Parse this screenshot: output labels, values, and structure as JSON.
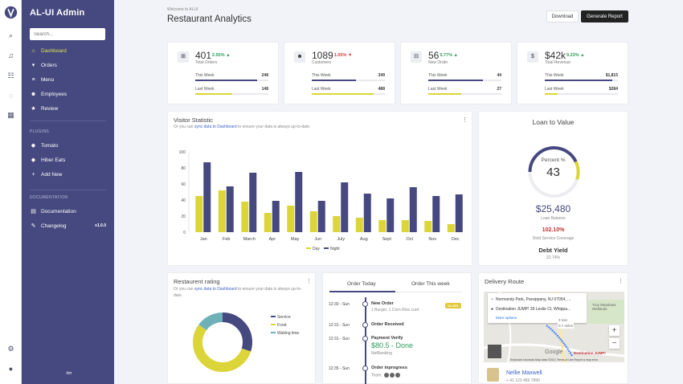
{
  "app": {
    "title": "AL-UI Admin",
    "search_placeholder": "Search...",
    "version": "v1.0.0"
  },
  "rail": {
    "icons": [
      "logo-icon",
      "search-icon",
      "bell-icon",
      "sliders-icon",
      "chat-icon",
      "calendar-icon",
      "gear-icon",
      "user-icon"
    ]
  },
  "sidebar": {
    "main_items": [
      {
        "label": "Dashboard",
        "icon": "home-icon"
      },
      {
        "label": "Orders",
        "icon": "cart-icon"
      },
      {
        "label": "Menu",
        "icon": "menu-icon"
      },
      {
        "label": "Employees",
        "icon": "users-icon"
      },
      {
        "label": "Review",
        "icon": "star-icon"
      }
    ],
    "plugins_heading": "PLUGINS",
    "plugin_items": [
      {
        "label": "Tomato",
        "icon": "tag-icon"
      },
      {
        "label": "Hiber Eats",
        "icon": "tag-icon"
      },
      {
        "label": "Add New",
        "icon": "plus-icon"
      }
    ],
    "docs_heading": "DOCUMENTATION",
    "doc_items": [
      {
        "label": "Documentation",
        "icon": "file-icon"
      },
      {
        "label": "Changelog",
        "icon": "pencil-icon"
      }
    ]
  },
  "header": {
    "welcome": "Welcome to ALUI",
    "title": "Restaurant Analytics",
    "download_label": "Download",
    "generate_label": "Generate Report"
  },
  "stats": [
    {
      "icon": "basket-icon",
      "value": "401",
      "pct": "2.55%",
      "dir": "up",
      "label": "Total Orders",
      "this_week_label": "This Week",
      "this_week": "248",
      "last_week_label": "Last Week",
      "last_week": "148",
      "this_fill": 0.85,
      "last_fill": 0.5
    },
    {
      "icon": "users-icon",
      "value": "1089",
      "pct": "1.05%",
      "dir": "down",
      "label": "Customers",
      "this_week_label": "This Week",
      "this_week": "349",
      "last_week_label": "Last Week",
      "last_week": "488",
      "this_fill": 0.6,
      "last_fill": 0.85
    },
    {
      "icon": "cart-icon",
      "value": "56",
      "pct": "5.77%",
      "dir": "up",
      "label": "New Order",
      "this_week_label": "This Week",
      "this_week": "44",
      "last_week_label": "Last Week",
      "last_week": "27",
      "this_fill": 0.75,
      "last_fill": 0.45
    },
    {
      "icon": "dollar-icon",
      "value": "$42k",
      "pct": "9.23%",
      "dir": "up",
      "label": "Total Revenue",
      "this_week_label": "This Week",
      "this_week": "$1,815",
      "last_week_label": "Last Week",
      "last_week": "$284",
      "this_fill": 0.92,
      "last_fill": 0.18
    }
  ],
  "visitor": {
    "title": "Visitor Statistic",
    "subtitle_pre": "Or you can ",
    "subtitle_link": "sync data to Dashboard",
    "subtitle_post": " to ensure your data is always up-to-date."
  },
  "chart_data": {
    "type": "bar",
    "categories": [
      "Jan",
      "Feb",
      "March",
      "Apr",
      "May",
      "Jun",
      "July",
      "Aug",
      "Sept",
      "Oct",
      "Nov",
      "Dec"
    ],
    "series": [
      {
        "name": "Day",
        "color": "#dcd53a",
        "values": [
          45,
          52,
          38,
          24,
          33,
          26,
          20,
          18,
          15,
          15,
          14,
          10
        ]
      },
      {
        "name": "Night",
        "color": "#46497f",
        "values": [
          87,
          57,
          74,
          39,
          75,
          39,
          62,
          48,
          42,
          56,
          45,
          47
        ]
      }
    ],
    "ylim": [
      0,
      100
    ],
    "yticks": [
      0,
      20,
      40,
      60,
      80,
      100
    ],
    "legend": "bottom"
  },
  "loan": {
    "title": "Loan to Value",
    "gauge_label": "Percent %",
    "gauge_value": "43",
    "gauge_fraction": 0.43,
    "amount": "$25,480",
    "amount_label": "Loan Balance",
    "coverage_label": "Debt Service Coverage",
    "coverage": "102.10%",
    "yield_title": "Debt Yield",
    "yield_value": "22.74%"
  },
  "rating": {
    "title": "Restaurent rating",
    "subtitle_pre": "Or you can ",
    "subtitle_link": "sync data to Dashboard",
    "subtitle_post": " to ensure your data is always up-to-date.",
    "segments": [
      {
        "label": "Service",
        "value": 30,
        "color": "#46497f"
      },
      {
        "label": "Food",
        "value": 55,
        "color": "#dcd53a"
      },
      {
        "label": "Waiting time",
        "value": 15,
        "color": "#6fb1b8"
      }
    ]
  },
  "orders": {
    "tab_today": "Order Today",
    "tab_week": "Order This week",
    "timeline": [
      {
        "time": "12:30 - Sun",
        "title": "New Order",
        "sub": "1 Burger, 1 Corn Rice curd",
        "badge": "10.25%"
      },
      {
        "time": "12:31 - Sun",
        "title": "Order Received",
        "sub": ""
      },
      {
        "time": "12:31 - Sun",
        "title": "Payment Verify",
        "amount": "$80.5 - Done",
        "sub": "NetBanking"
      },
      {
        "time": "12:35 - Sun",
        "title": "Order inprogress",
        "sub": "Team:"
      }
    ]
  },
  "delivery": {
    "title": "Delivery Route",
    "from": "Normandy Park, Parsippany, NJ 07054, ...",
    "to": "Destination JUMP! 39 Leslie Ct, Whippa...",
    "more": "More options",
    "duration": "3 min",
    "distance": "0.7 miles",
    "place": "Troy Meadows Wetlands",
    "dest_pin": "Destination JUMP!",
    "google": "Google",
    "footer": "Keyboard shortcuts   Map data ©2021   Terms of Use   Report a map error",
    "contact_name": "Nellie Maxwell",
    "contact_phone": "+ 41 123 456 7890"
  }
}
